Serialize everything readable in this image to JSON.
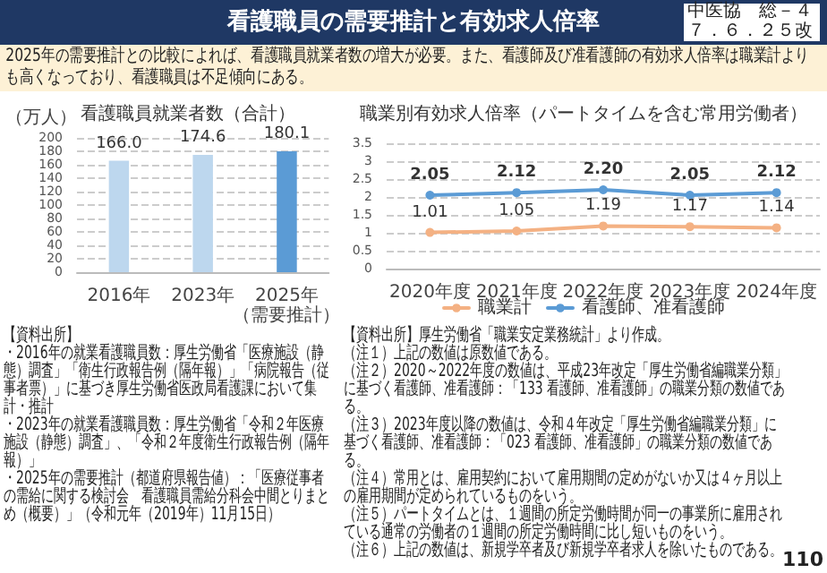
{
  "chart_data": [
    {
      "type": "bar",
      "title": "看護職員就業者数（合計）",
      "ylabel": "（万人）",
      "categories": [
        "2016年",
        "2023年",
        "2025年（需要推計）"
      ],
      "values": [
        166.0,
        174.6,
        180.1
      ],
      "value_labels": [
        "166.0",
        "174.6",
        "180.1"
      ],
      "colors": [
        "#bdd7ee",
        "#bdd7ee",
        "#5b9bd5"
      ],
      "ylim": [
        0,
        200
      ],
      "yticks": [
        0,
        20,
        40,
        60,
        80,
        100,
        120,
        140,
        160,
        180,
        200
      ],
      "grid": "y",
      "annotations": [
        "看護職員の需要推計と有効求人倍率",
        "2025年の需要推計との比較によれば、看護職員就業者数の増大が必要。また、看護師及び准看護師の有効求人倍率は職業計よりも高くなっており、看護職員は不足傾向にある。",
        "中医協　総－４７．６．２５改",
        "110",
        "【資料出所】",
        "・2016年の就業看護職員数：厚生労働省「医療施設（静態）調査」「衛生行政報告例（隔年報）」「病院報告（従事者票）」に基づき厚生労働省医政局看護課において集計・推計",
        "・2023年の就業看護職員数：厚生労働省「令和２年医療施設（静態）調査」、「令和２年度衛生行政報告例（隔年報）」",
        "・2025年の需要推計（都道府県報告値）：「医療従事者の需給に関する検討会　看護職員需給分科会中間とりまとめ（概要）」（令和元年（2019年）11月15日）"
      ]
    },
    {
      "type": "line",
      "title": "職業別有効求人倍率（パートタイムを含む常用労働者）",
      "categories": [
        "2020年度",
        "2021年度",
        "2022年度",
        "2023年度",
        "2024年度"
      ],
      "series": [
        {
          "name": "職業計",
          "color": "#f4b183",
          "values": [
            1.01,
            1.05,
            1.19,
            1.17,
            1.14
          ],
          "value_labels": [
            "1.01",
            "1.05",
            "1.19",
            "1.17",
            "1.14"
          ]
        },
        {
          "name": "看護師、准看護師",
          "color": "#5b9bd5",
          "values": [
            2.05,
            2.12,
            2.2,
            2.05,
            2.12
          ],
          "value_labels": [
            "2.05",
            "2.12",
            "2.20",
            "2.05",
            "2.12"
          ]
        }
      ],
      "ylim": [
        0,
        3.5
      ],
      "yticks": [
        0,
        0.5,
        1,
        1.5,
        2,
        2.5,
        3,
        3.5
      ],
      "grid": "y",
      "legend": "bottom",
      "marker": "circle",
      "annotations": [
        "【資料出所】厚生労働省「職業安定業務統計」より作成。",
        "（注１）上記の数値は原数値である。",
        "（注２）2020～2022年度の数値は、平成23年改定「厚生労働省編職業分類」に基づく看護師、准看護師：「133 看護師、准看護師」の職業分類の数値である。",
        "（注３）2023年度以降の数値は、令和４年改定「厚生労働省編職業分類」に基づく看護師、准看護師：「023 看護師、准看護師」の職業分類の数値である。",
        "（注４）常用とは、雇用契約において雇用期間の定めがないか又は４ヶ月以上の雇用期間が定められているものをいう。",
        "（注５）パートタイムとは、１週間の所定労働時間が同一の事業所に雇用されている通常の労働者の１週間の所定労働時間に比し短いものをいう。",
        "（注６）上記の数値は、新規学卒者及び新規学卒者求人を除いたものである。"
      ]
    }
  ]
}
